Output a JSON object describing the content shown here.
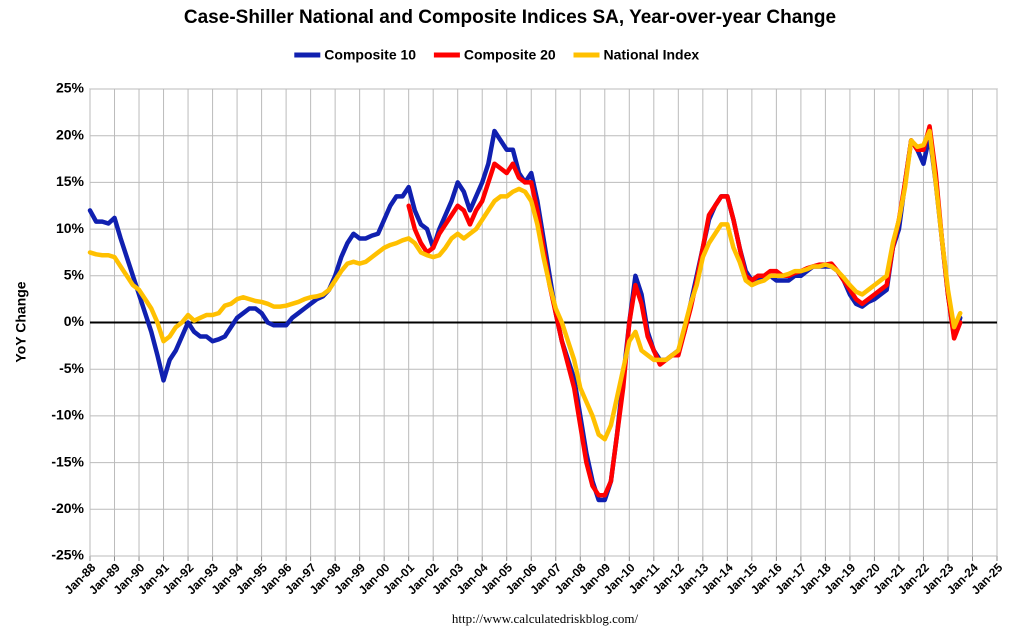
{
  "chart_data": {
    "type": "line",
    "title": "Case-Shiller National and Composite Indices SA, Year-over-year Change",
    "y_label": "YoY Change",
    "source": "http://www.calculatedriskblog.com/",
    "legend": "top",
    "grid": true,
    "zero_line": true,
    "ylim": [
      -25,
      25
    ],
    "yticks": [
      {
        "value": -25,
        "label": "-25%"
      },
      {
        "value": -20,
        "label": "-20%"
      },
      {
        "value": -15,
        "label": "-15%"
      },
      {
        "value": -10,
        "label": "-10%"
      },
      {
        "value": -5,
        "label": "-5%"
      },
      {
        "value": 0,
        "label": "0%"
      },
      {
        "value": 5,
        "label": "5%"
      },
      {
        "value": 10,
        "label": "10%"
      },
      {
        "value": 15,
        "label": "15%"
      },
      {
        "value": 20,
        "label": "20%"
      },
      {
        "value": 25,
        "label": "25%"
      }
    ],
    "categories": [
      "Jan-88",
      null,
      null,
      null,
      "Jan-89",
      null,
      null,
      null,
      "Jan-90",
      null,
      null,
      null,
      "Jan-91",
      null,
      null,
      null,
      "Jan-92",
      null,
      null,
      null,
      "Jan-93",
      null,
      null,
      null,
      "Jan-94",
      null,
      null,
      null,
      "Jan-95",
      null,
      null,
      null,
      "Jan-96",
      null,
      null,
      null,
      "Jan-97",
      null,
      null,
      null,
      "Jan-98",
      null,
      null,
      null,
      "Jan-99",
      null,
      null,
      null,
      "Jan-00",
      null,
      null,
      null,
      "Jan-01",
      null,
      null,
      null,
      "Jan-02",
      null,
      null,
      null,
      "Jan-03",
      null,
      null,
      null,
      "Jan-04",
      null,
      null,
      null,
      "Jan-05",
      null,
      null,
      null,
      "Jan-06",
      null,
      null,
      null,
      "Jan-07",
      null,
      null,
      null,
      "Jan-08",
      null,
      null,
      null,
      "Jan-09",
      null,
      null,
      null,
      "Jan-10",
      null,
      null,
      null,
      "Jan-11",
      null,
      null,
      null,
      "Jan-12",
      null,
      null,
      null,
      "Jan-13",
      null,
      null,
      null,
      "Jan-14",
      null,
      null,
      null,
      "Jan-15",
      null,
      null,
      null,
      "Jan-16",
      null,
      null,
      null,
      "Jan-17",
      null,
      null,
      null,
      "Jan-18",
      null,
      null,
      null,
      "Jan-19",
      null,
      null,
      null,
      "Jan-20",
      null,
      null,
      null,
      "Jan-21",
      null,
      null,
      null,
      "Jan-22",
      null,
      null,
      null,
      "Jan-23",
      null,
      null,
      null,
      "Jan-24",
      null,
      null,
      null,
      "Jan-25"
    ],
    "series": [
      {
        "name": "Composite 10",
        "color": "#1020b0",
        "values": [
          12,
          10.8,
          10.8,
          10.6,
          11.2,
          9,
          7,
          5,
          3,
          1,
          -1,
          -3.5,
          -6.2,
          -4,
          -3,
          -1.5,
          0,
          -1,
          -1.5,
          -1.5,
          -2,
          -1.8,
          -1.5,
          -0.5,
          0.5,
          1,
          1.5,
          1.5,
          1,
          0,
          -0.3,
          -0.3,
          -0.3,
          0.5,
          1,
          1.5,
          2,
          2.5,
          2.8,
          3.5,
          5,
          7,
          8.5,
          9.5,
          9,
          9,
          9.3,
          9.5,
          11,
          12.5,
          13.5,
          13.5,
          14.5,
          12,
          10.5,
          10,
          8,
          10,
          11.5,
          13,
          15,
          14,
          12,
          13.5,
          15,
          17,
          20.5,
          19.5,
          18.5,
          18.5,
          16,
          15,
          16,
          13,
          9,
          5,
          1,
          -2,
          -4,
          -6,
          -10,
          -14,
          -17,
          -19,
          -19,
          -17,
          -12,
          -6,
          0,
          5,
          3,
          -1,
          -3,
          -4,
          -4,
          -3.5,
          -3,
          -1,
          2,
          5,
          8,
          11,
          12.5,
          13.5,
          13.5,
          11,
          8,
          5.5,
          4.5,
          4.5,
          5,
          5,
          4.5,
          4.5,
          4.5,
          5,
          5,
          5.5,
          6,
          6,
          6,
          6,
          5.5,
          4.5,
          3,
          2,
          1.7,
          2.2,
          2.5,
          3,
          3.5,
          8,
          10,
          15,
          19.5,
          18.5,
          17,
          20,
          15,
          9,
          3,
          -1.5,
          0.5,
          null,
          null,
          null,
          null,
          null,
          null
        ]
      },
      {
        "name": "Composite 20",
        "color": "#ff0000",
        "values": [
          null,
          null,
          null,
          null,
          null,
          null,
          null,
          null,
          null,
          null,
          null,
          null,
          null,
          null,
          null,
          null,
          null,
          null,
          null,
          null,
          null,
          null,
          null,
          null,
          null,
          null,
          null,
          null,
          null,
          null,
          null,
          null,
          null,
          null,
          null,
          null,
          null,
          null,
          null,
          null,
          null,
          null,
          null,
          null,
          null,
          null,
          null,
          null,
          null,
          null,
          null,
          null,
          12.5,
          10,
          8.5,
          7.5,
          8,
          9.5,
          10.5,
          11.5,
          12.5,
          12,
          10.5,
          12,
          13,
          15,
          17,
          16.5,
          16,
          17,
          15.5,
          15,
          15,
          12,
          8,
          4,
          1,
          -2,
          -4.5,
          -7,
          -11,
          -15,
          -17.5,
          -18.5,
          -18.5,
          -17,
          -12,
          -7,
          0,
          4,
          2,
          -1.5,
          -3,
          -4.5,
          -4,
          -3.5,
          -3.5,
          -1,
          1.5,
          4.5,
          8,
          11.5,
          12.5,
          13.5,
          13.5,
          11,
          8,
          5,
          4.5,
          5,
          5,
          5.5,
          5.5,
          5,
          5,
          5.3,
          5.5,
          5.8,
          6,
          6.2,
          6.2,
          6.3,
          5.5,
          4.5,
          3.5,
          2.5,
          2,
          2.5,
          3,
          3.5,
          4,
          8,
          11,
          15,
          19.5,
          18.5,
          18.5,
          21,
          16,
          9,
          3,
          -1.7,
          0,
          null,
          null,
          null,
          null,
          null,
          null
        ]
      },
      {
        "name": "National Index",
        "color": "#ffc000",
        "values": [
          7.5,
          7.3,
          7.2,
          7.2,
          7,
          6,
          5,
          4,
          3.5,
          2.5,
          1.5,
          0,
          -2,
          -1.5,
          -0.5,
          0,
          0.8,
          0.2,
          0.5,
          0.8,
          0.8,
          1,
          1.8,
          2,
          2.5,
          2.7,
          2.5,
          2.3,
          2.2,
          2,
          1.7,
          1.7,
          1.8,
          2,
          2.2,
          2.5,
          2.7,
          2.8,
          3,
          3.5,
          4.5,
          5.5,
          6.3,
          6.5,
          6.3,
          6.5,
          7,
          7.5,
          8,
          8.3,
          8.5,
          8.8,
          9,
          8.5,
          7.5,
          7.2,
          7,
          7.2,
          8,
          9,
          9.5,
          9,
          9.5,
          10,
          11,
          12,
          13,
          13.5,
          13.5,
          14,
          14.3,
          14,
          13,
          10.5,
          7,
          4,
          1.5,
          0,
          -2,
          -4,
          -7,
          -8.5,
          -10,
          -12,
          -12.5,
          -11,
          -8,
          -5,
          -2,
          -1,
          -3,
          -3.5,
          -4,
          -4,
          -4,
          -3.5,
          -3,
          -0.5,
          2,
          4,
          7,
          8.5,
          9.5,
          10.5,
          10.5,
          8,
          6.5,
          4.5,
          4,
          4.3,
          4.5,
          5,
          5,
          5,
          5.2,
          5.5,
          5.5,
          5.7,
          6,
          6,
          6.2,
          6,
          5.5,
          4.8,
          4,
          3.3,
          3,
          3.5,
          4,
          4.5,
          5,
          8.5,
          11,
          14.5,
          19.5,
          18.8,
          19,
          20.5,
          15,
          9,
          3.5,
          -0.5,
          1,
          null,
          null,
          null,
          null,
          null,
          null
        ]
      }
    ]
  }
}
